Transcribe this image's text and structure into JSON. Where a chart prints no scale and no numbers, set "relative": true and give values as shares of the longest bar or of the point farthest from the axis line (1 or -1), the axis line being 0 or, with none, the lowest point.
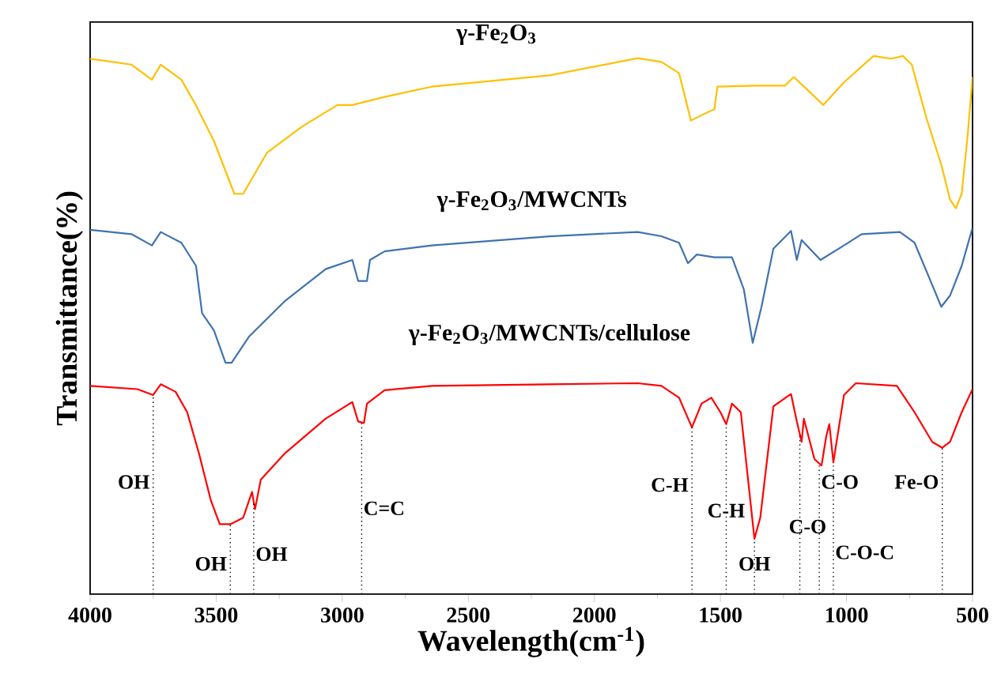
{
  "chart_data": {
    "type": "line",
    "relative": true,
    "xlabel": "Wavelength(cm$^{-1}$)",
    "ylabel": "Transmittance(%)",
    "xlim": [
      4000,
      500
    ],
    "xticks": [
      4000,
      3500,
      3000,
      2500,
      2000,
      1500,
      1000,
      500
    ],
    "series": [
      {
        "name": "γ-Fe$_{2}$O$_{3}$",
        "color": "#ffc000",
        "x": [
          4000,
          3836,
          3755,
          3720,
          3638,
          3580,
          3509,
          3428,
          3393,
          3299,
          3159,
          3019,
          2960,
          2832,
          2645,
          2178,
          1828,
          1734,
          1664,
          1617,
          1571,
          1524,
          1512,
          1360,
          1244,
          1209,
          1150,
          1092,
          1010,
          893,
          823,
          776,
          741,
          683,
          624,
          589,
          566,
          543,
          519,
          500
        ],
        "values": [
          0.995,
          0.984,
          0.956,
          0.984,
          0.956,
          0.908,
          0.842,
          0.744,
          0.744,
          0.82,
          0.869,
          0.909,
          0.909,
          0.924,
          0.943,
          0.964,
          0.996,
          0.989,
          0.968,
          0.88,
          0.891,
          0.901,
          0.943,
          0.945,
          0.945,
          0.961,
          0.935,
          0.909,
          0.951,
          1.0,
          0.995,
          1.0,
          0.984,
          0.885,
          0.798,
          0.733,
          0.717,
          0.744,
          0.854,
          0.961
        ]
      },
      {
        "name": "γ-Fe$_{2}$O$_{3}$/MWCNTs",
        "color": "#3f72af",
        "x": [
          4000,
          3836,
          3755,
          3720,
          3638,
          3580,
          3556,
          3509,
          3463,
          3439,
          3369,
          3229,
          3066,
          2960,
          2937,
          2902,
          2890,
          2832,
          2645,
          2178,
          1828,
          1734,
          1664,
          1629,
          1594,
          1524,
          1454,
          1407,
          1372,
          1337,
          1290,
          1220,
          1197,
          1178,
          1103,
          1010,
          940,
          788,
          730,
          671,
          624,
          589,
          543,
          500
        ],
        "values": [
          0.677,
          0.669,
          0.648,
          0.673,
          0.653,
          0.61,
          0.522,
          0.49,
          0.43,
          0.43,
          0.479,
          0.544,
          0.604,
          0.621,
          0.582,
          0.582,
          0.621,
          0.637,
          0.648,
          0.665,
          0.673,
          0.665,
          0.653,
          0.615,
          0.631,
          0.626,
          0.626,
          0.566,
          0.467,
          0.534,
          0.642,
          0.675,
          0.621,
          0.658,
          0.621,
          0.648,
          0.669,
          0.673,
          0.653,
          0.587,
          0.534,
          0.555,
          0.61,
          0.681
        ]
      },
      {
        "name": "γ-Fe$_{2}$O$_{3}$/MWCNTs/cellulose",
        "color": "#ff0000",
        "x": [
          4000,
          3813,
          3750,
          3720,
          3661,
          3615,
          3568,
          3521,
          3486,
          3444,
          3393,
          3358,
          3346,
          3323,
          3229,
          3066,
          2960,
          2937,
          2914,
          2902,
          2832,
          2645,
          2178,
          1828,
          1734,
          1664,
          1613,
          1575,
          1536,
          1500,
          1477,
          1454,
          1419,
          1384,
          1365,
          1342,
          1290,
          1220,
          1197,
          1178,
          1169,
          1127,
          1099,
          1080,
          1068,
          1052,
          1010,
          963,
          800,
          730,
          660,
          620,
          589,
          543,
          500
        ],
        "values": [
          0.387,
          0.381,
          0.37,
          0.39,
          0.376,
          0.338,
          0.261,
          0.174,
          0.13,
          0.13,
          0.142,
          0.19,
          0.158,
          0.213,
          0.261,
          0.326,
          0.357,
          0.321,
          0.318,
          0.354,
          0.379,
          0.387,
          0.39,
          0.392,
          0.387,
          0.365,
          0.31,
          0.354,
          0.365,
          0.338,
          0.316,
          0.354,
          0.338,
          0.185,
          0.103,
          0.142,
          0.349,
          0.372,
          0.321,
          0.283,
          0.326,
          0.251,
          0.239,
          0.294,
          0.316,
          0.245,
          0.37,
          0.392,
          0.387,
          0.338,
          0.283,
          0.272,
          0.283,
          0.338,
          0.381
        ]
      }
    ],
    "ref_lines": [
      {
        "axis": "x",
        "value": 3750,
        "label": "OH",
        "line_style": "dotted"
      },
      {
        "axis": "x",
        "value": 3444,
        "label": "OH",
        "line_style": "dotted"
      },
      {
        "axis": "x",
        "value": 3351,
        "label": "OH",
        "line_style": "dotted"
      },
      {
        "axis": "x",
        "value": 2923,
        "label": "C=C",
        "line_style": "dotted"
      },
      {
        "axis": "x",
        "value": 1613,
        "label": "C-H",
        "line_style": "dotted"
      },
      {
        "axis": "x",
        "value": 1477,
        "label": "C-H",
        "line_style": "dotted"
      },
      {
        "axis": "x",
        "value": 1365,
        "label": "OH",
        "line_style": "dotted"
      },
      {
        "axis": "x",
        "value": 1185,
        "label": "C-O",
        "line_style": "dotted"
      },
      {
        "axis": "x",
        "value": 1108,
        "label": "C-O",
        "line_style": "dotted"
      },
      {
        "axis": "x",
        "value": 1052,
        "label": "C-O-C",
        "line_style": "dotted"
      },
      {
        "axis": "x",
        "value": 620,
        "label": "Fe-O",
        "line_style": "dotted"
      }
    ]
  }
}
